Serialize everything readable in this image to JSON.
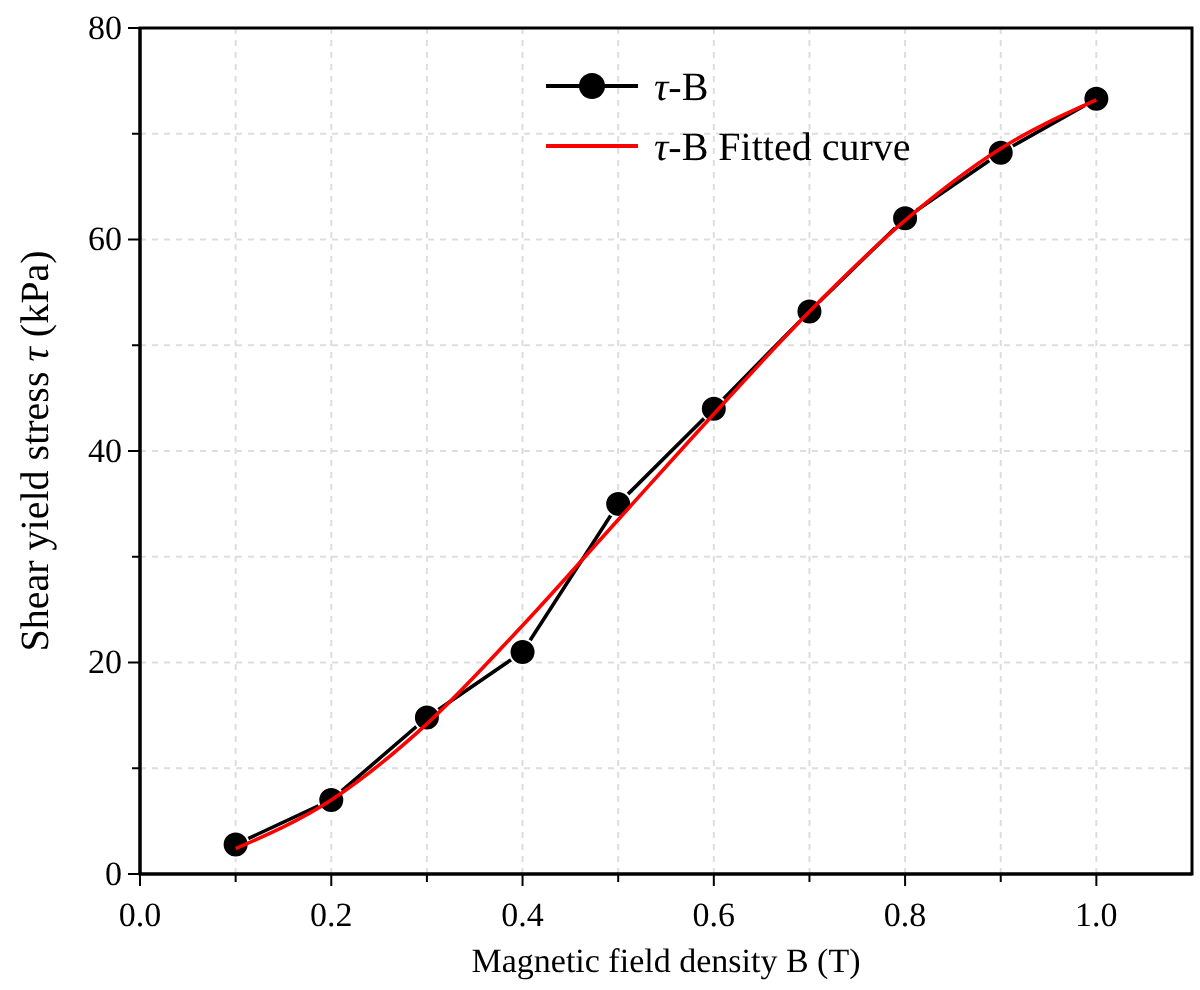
{
  "chart_data": {
    "type": "line",
    "xlabel": "Magnetic field density B (T)",
    "ylabel": "Shear yield stress τ (kPa)",
    "x": [
      0.1,
      0.2,
      0.3,
      0.4,
      0.5,
      0.6,
      0.7,
      0.8,
      0.9,
      1.0
    ],
    "series": [
      {
        "name": "τ-B",
        "color": "#000000",
        "marker": "circle",
        "values": [
          2.8,
          7.0,
          14.8,
          21.0,
          35.0,
          44.0,
          53.2,
          62.0,
          68.2,
          73.3
        ]
      },
      {
        "name": "τ-B Fitted curve",
        "color": "#ff0000",
        "marker": "none",
        "values": [
          2.4,
          7.0,
          14.2,
          23.5,
          33.5,
          43.5,
          53.2,
          61.8,
          68.6,
          73.2
        ]
      }
    ],
    "xlim": [
      0,
      1.1
    ],
    "ylim": [
      0,
      80
    ],
    "xticks": [
      {
        "value": 0,
        "label": "0.0"
      },
      {
        "value": 0.1,
        "label": null
      },
      {
        "value": 0.2,
        "label": "0.2"
      },
      {
        "value": 0.3,
        "label": null
      },
      {
        "value": 0.4,
        "label": "0.4"
      },
      {
        "value": 0.5,
        "label": null
      },
      {
        "value": 0.6,
        "label": "0.6"
      },
      {
        "value": 0.7,
        "label": null
      },
      {
        "value": 0.8,
        "label": "0.8"
      },
      {
        "value": 0.9,
        "label": null
      },
      {
        "value": 1.0,
        "label": "1.0"
      }
    ],
    "yticks": [
      0,
      {
        "value": 10,
        "label": null
      },
      20,
      {
        "value": 30,
        "label": null
      },
      40,
      {
        "value": 50,
        "label": null
      },
      60,
      {
        "value": 70,
        "label": null
      },
      80
    ],
    "grid": true,
    "legend": "top",
    "line_style": "solid"
  }
}
